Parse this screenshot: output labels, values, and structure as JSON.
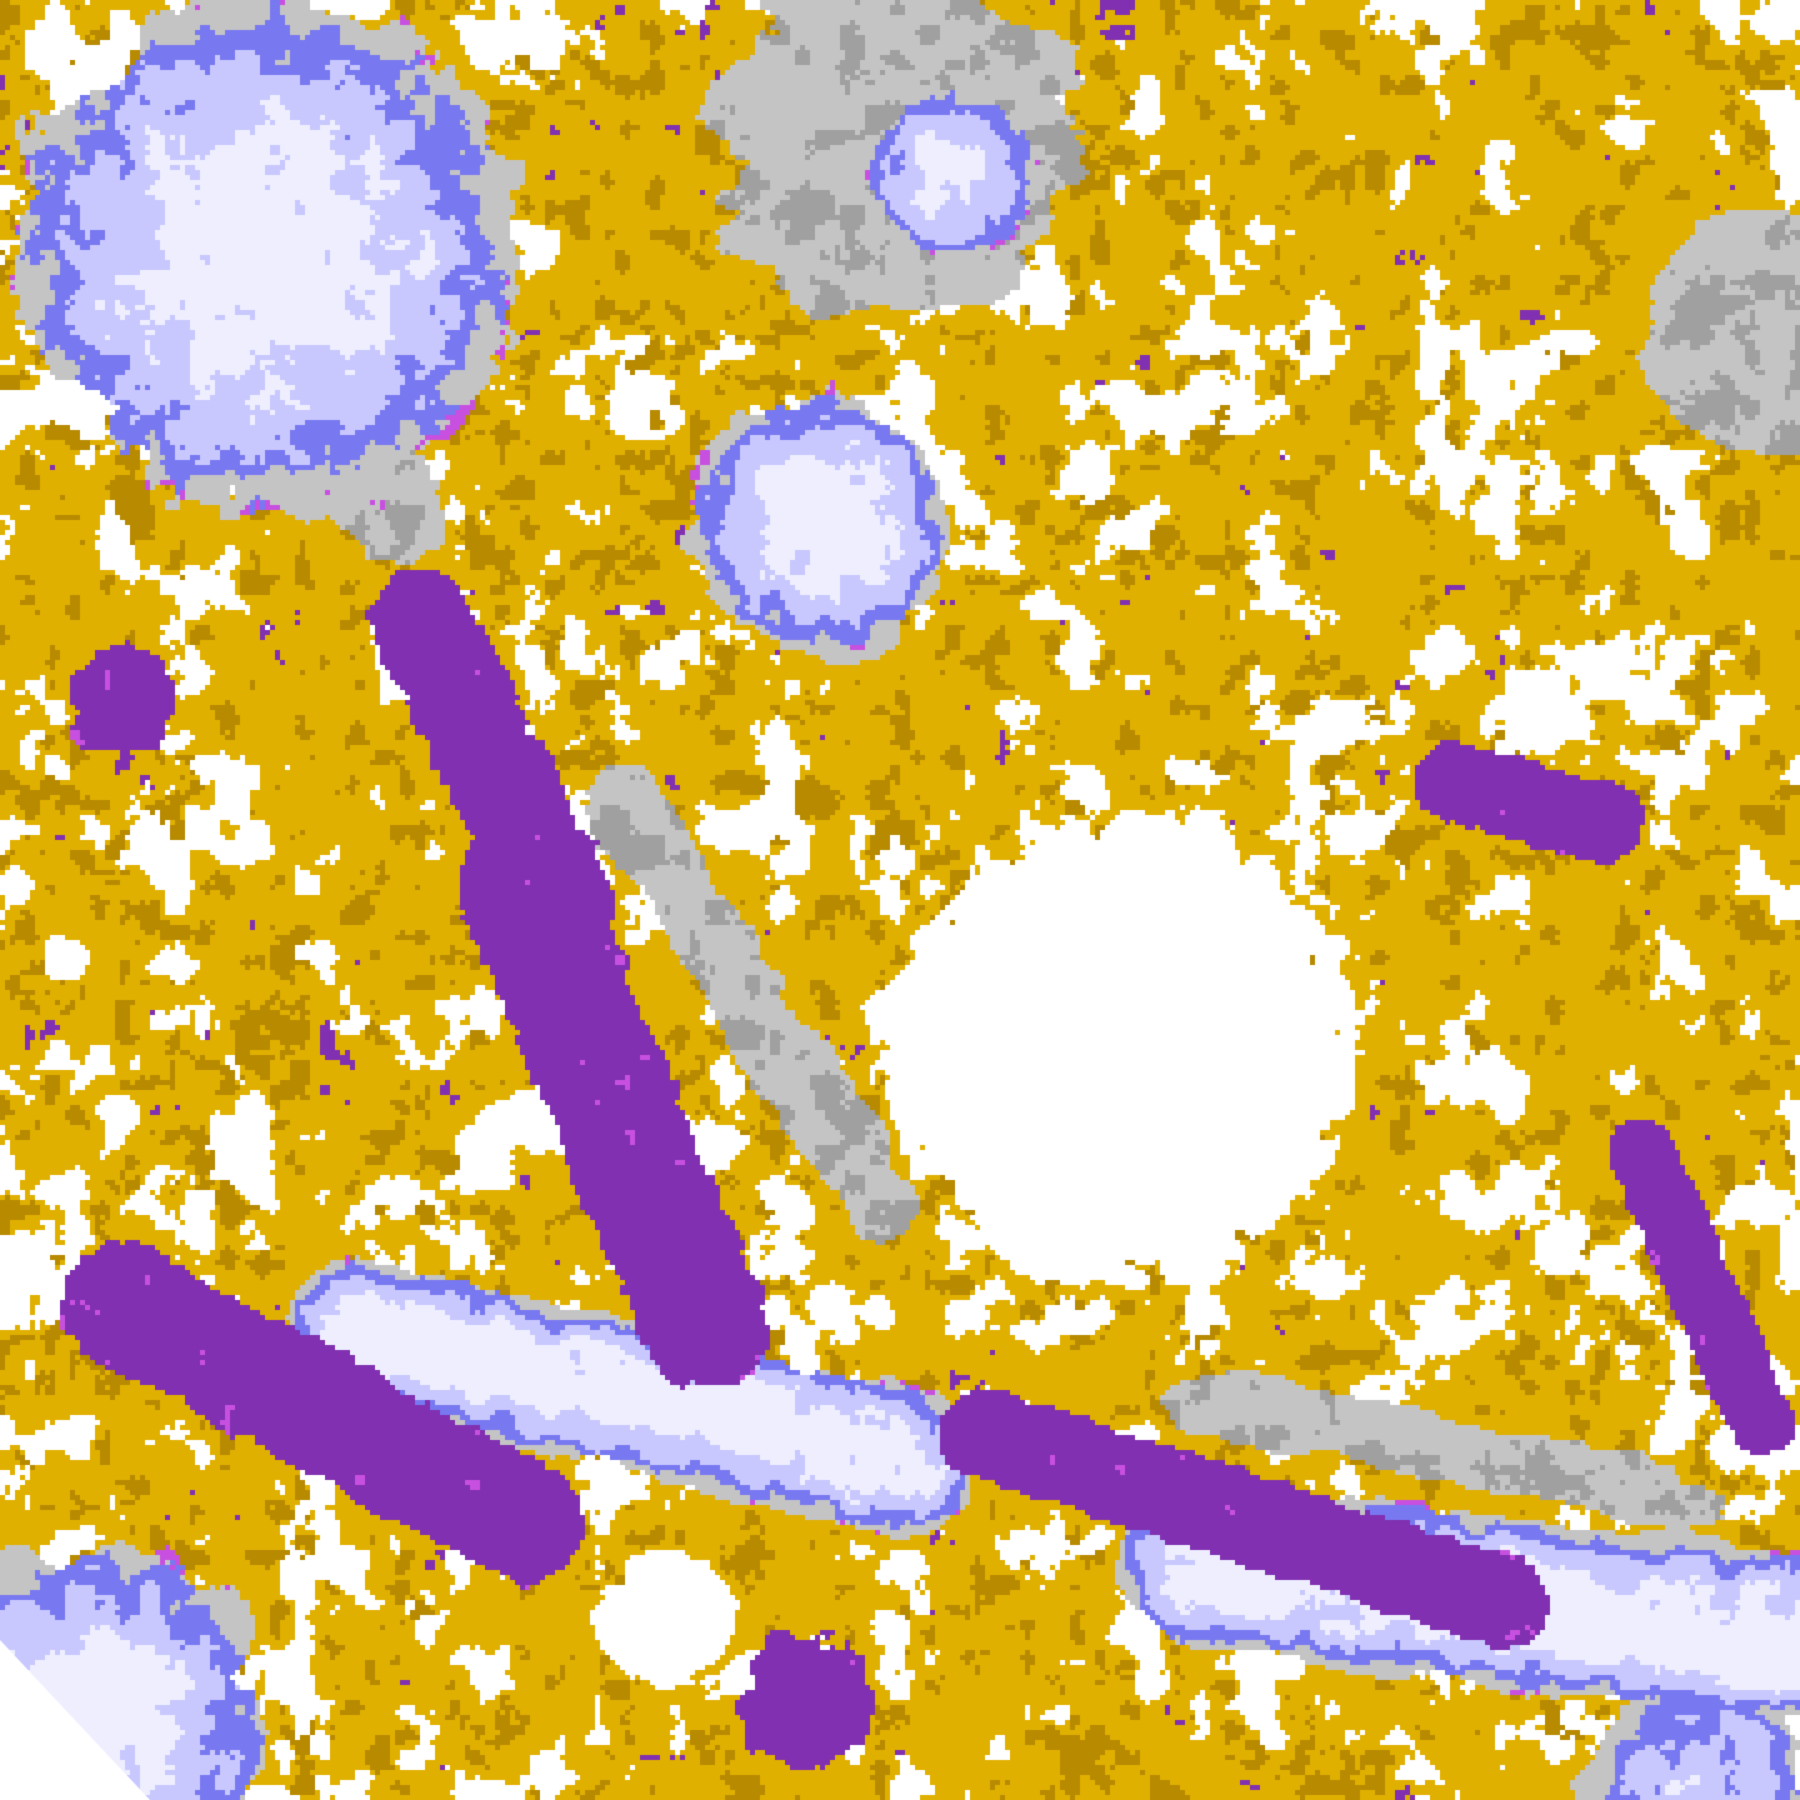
{
  "image": {
    "kind": "satellite cloud-type classification",
    "palette": {
      "clear": "#ffffff",
      "low_cloud_gold": "#e0b000",
      "low_cloud_dark_gold": "#b88a00",
      "stratiform_purple": "#8030b0",
      "magenta": "#c850e0",
      "blue": "#7878f0",
      "lavender": "#c8c8ff",
      "pale": "#eeeeff",
      "gray": "#a0a0a0",
      "light_gray": "#c4c4c4"
    }
  }
}
